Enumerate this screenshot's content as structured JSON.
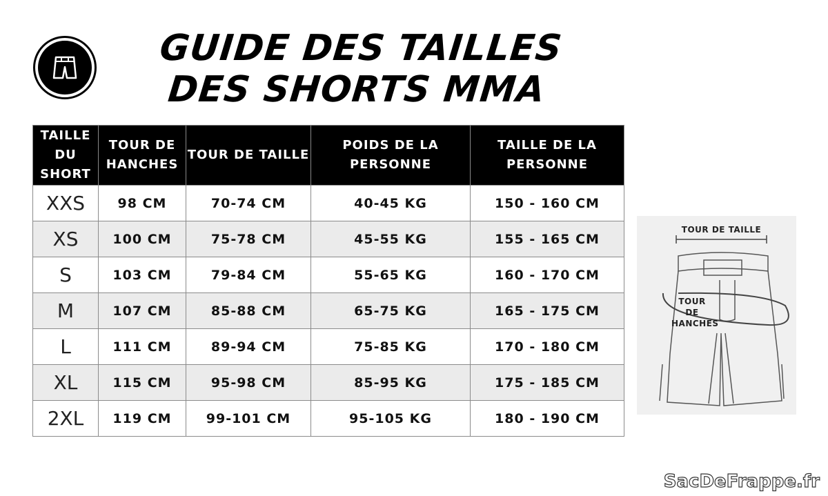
{
  "title": "GUIDE DES TAILLES DES SHORTS MMA",
  "logo_icon": "shorts-icon",
  "table": {
    "headers": [
      "TAILLE DU SHORT",
      "TOUR DE HANCHES",
      "TOUR DE TAILLE",
      "POIDS DE LA PERSONNE",
      "TAILLE DE LA PERSONNE"
    ],
    "rows": [
      [
        "XXS",
        "98 CM",
        "70-74 CM",
        "40-45 KG",
        "150 - 160 CM"
      ],
      [
        "XS",
        "100 CM",
        "75-78 CM",
        "45-55 KG",
        "155 - 165 CM"
      ],
      [
        "S",
        "103 CM",
        "79-84 CM",
        "55-65 KG",
        "160 - 170 CM"
      ],
      [
        "M",
        "107 CM",
        "85-88 CM",
        "65-75 KG",
        "165 - 175 CM"
      ],
      [
        "L",
        "111 CM",
        "89-94 CM",
        "75-85 KG",
        "170 - 180 CM"
      ],
      [
        "XL",
        "115 CM",
        "95-98 CM",
        "85-95 KG",
        "175 - 185 CM"
      ],
      [
        "2XL",
        "119 CM",
        "99-101 CM",
        "95-105 KG",
        "180 - 190 CM"
      ]
    ]
  },
  "illustration": {
    "waist_label": "TOUR DE TAILLE",
    "hips_label": "TOUR DE HANCHES"
  },
  "brand": "SacDeFrappe.fr",
  "colors": {
    "header_bg": "#000000",
    "alt_row": "#ebebeb",
    "hip_ring": "#555555"
  }
}
